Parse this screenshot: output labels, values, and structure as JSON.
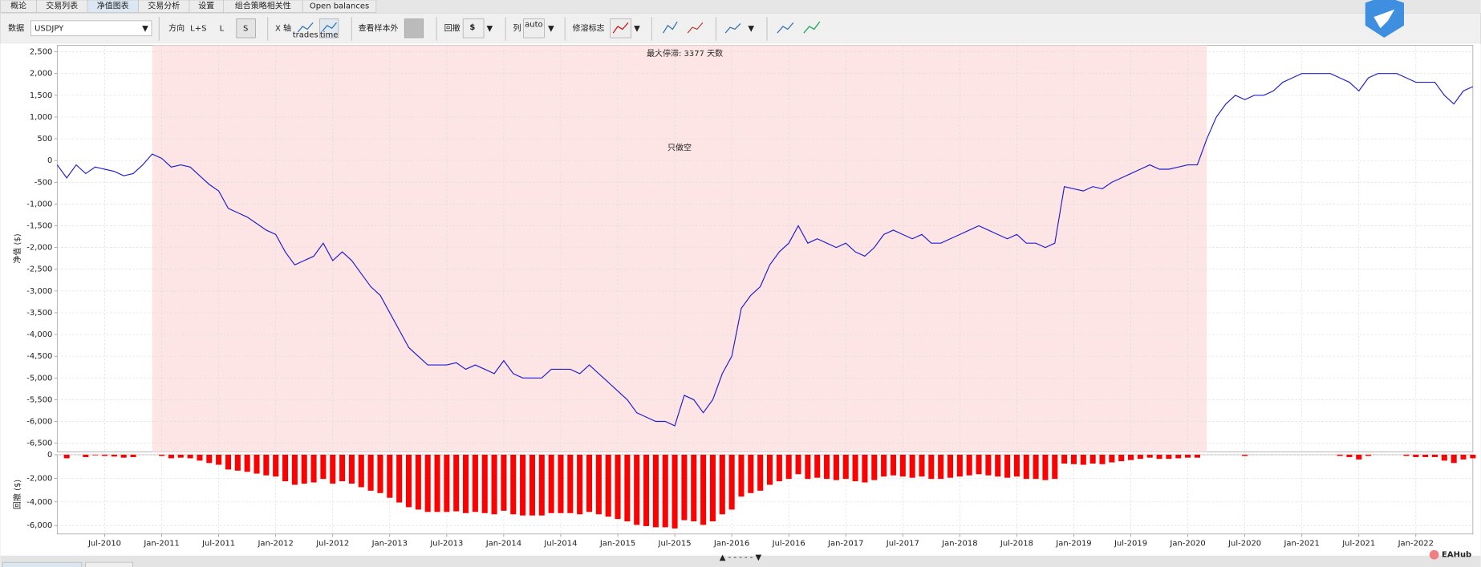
{
  "tabs": [
    "概论",
    "交易列表",
    "净值图表",
    "交易分析",
    "设置",
    "组合策略相关性",
    "Open balances"
  ],
  "toolbar": {
    "data_label": "数据",
    "symbol": "USDJPY",
    "direction_label": "方向",
    "direction_options": [
      "L+S",
      "L",
      "S"
    ],
    "x_axis_label": "X 轴",
    "x_axis_icons": [
      "trades",
      "time"
    ],
    "out_of_sample_label": "查看样本外",
    "drawdown_label": "回撤",
    "columns_label": "列",
    "columns_icon": "auto",
    "markers_label": "修溶标志"
  },
  "watermark": "EAHub",
  "chart_data": [
    {
      "type": "line",
      "ylabel": "净值 ($)",
      "annotation": "最大停滞: 3377 天数",
      "shaded_label": "只做空",
      "shaded_range": [
        "2010-12",
        "2020-03"
      ],
      "shaded_color": "#fde4e5",
      "xlim": [
        "2010-02",
        "2022-07"
      ],
      "ylim": [
        -6700,
        2650
      ],
      "grid": true,
      "yticks": [
        {
          "value": 2500,
          "label": "2,500"
        },
        {
          "value": 2000,
          "label": "2,000"
        },
        {
          "value": 1500,
          "label": "1,500"
        },
        {
          "value": 1000,
          "label": "1,000"
        },
        500,
        0,
        -500,
        {
          "value": -1000,
          "label": "-1,000"
        },
        {
          "value": -1500,
          "label": "-1,500"
        },
        {
          "value": -2000,
          "label": "-2,000"
        },
        {
          "value": -2500,
          "label": "-2,500"
        },
        {
          "value": -3000,
          "label": "-3,000"
        },
        {
          "value": -3500,
          "label": "-3,500"
        },
        {
          "value": -4000,
          "label": "-4,000"
        },
        {
          "value": -4500,
          "label": "-4,500"
        },
        {
          "value": -5000,
          "label": "-5,000"
        },
        {
          "value": -5500,
          "label": "-5,500"
        },
        {
          "value": -6000,
          "label": "-6,000"
        },
        {
          "value": -6500,
          "label": "-6,500"
        }
      ],
      "x": [
        "2010-02",
        "2010-03",
        "2010-04",
        "2010-05",
        "2010-06",
        "2010-07",
        "2010-08",
        "2010-09",
        "2010-10",
        "2010-11",
        "2010-12",
        "2011-01",
        "2011-02",
        "2011-03",
        "2011-04",
        "2011-05",
        "2011-06",
        "2011-07",
        "2011-08",
        "2011-09",
        "2011-10",
        "2011-11",
        "2011-12",
        "2012-01",
        "2012-02",
        "2012-03",
        "2012-04",
        "2012-05",
        "2012-06",
        "2012-07",
        "2012-08",
        "2012-09",
        "2012-10",
        "2012-11",
        "2012-12",
        "2013-01",
        "2013-02",
        "2013-03",
        "2013-04",
        "2013-05",
        "2013-06",
        "2013-07",
        "2013-08",
        "2013-09",
        "2013-10",
        "2013-11",
        "2013-12",
        "2014-01",
        "2014-02",
        "2014-03",
        "2014-04",
        "2014-05",
        "2014-06",
        "2014-07",
        "2014-08",
        "2014-09",
        "2014-10",
        "2014-11",
        "2014-12",
        "2015-01",
        "2015-02",
        "2015-03",
        "2015-04",
        "2015-05",
        "2015-06",
        "2015-07",
        "2015-08",
        "2015-09",
        "2015-10",
        "2015-11",
        "2015-12",
        "2016-01",
        "2016-02",
        "2016-03",
        "2016-04",
        "2016-05",
        "2016-06",
        "2016-07",
        "2016-08",
        "2016-09",
        "2016-10",
        "2016-11",
        "2016-12",
        "2017-01",
        "2017-02",
        "2017-03",
        "2017-04",
        "2017-05",
        "2017-06",
        "2017-07",
        "2017-08",
        "2017-09",
        "2017-10",
        "2017-11",
        "2017-12",
        "2018-01",
        "2018-02",
        "2018-03",
        "2018-04",
        "2018-05",
        "2018-06",
        "2018-07",
        "2018-08",
        "2018-09",
        "2018-10",
        "2018-11",
        "2018-12",
        "2019-01",
        "2019-02",
        "2019-03",
        "2019-04",
        "2019-05",
        "2019-06",
        "2019-07",
        "2019-08",
        "2019-09",
        "2019-10",
        "2019-11",
        "2019-12",
        "2020-01",
        "2020-02",
        "2020-03",
        "2020-04",
        "2020-05",
        "2020-06",
        "2020-07",
        "2020-08",
        "2020-09",
        "2020-10",
        "2020-11",
        "2020-12",
        "2021-01",
        "2021-02",
        "2021-03",
        "2021-04",
        "2021-05",
        "2021-06",
        "2021-07",
        "2021-08",
        "2021-09",
        "2021-10",
        "2021-11",
        "2021-12",
        "2022-01",
        "2022-02",
        "2022-03",
        "2022-04",
        "2022-05",
        "2022-06",
        "2022-07"
      ],
      "series": [
        {
          "name": "净值",
          "color": "#1f1fd1",
          "values": [
            -100,
            -400,
            -100,
            -300,
            -150,
            -200,
            -250,
            -350,
            -300,
            -100,
            150,
            50,
            -150,
            -100,
            -150,
            -350,
            -550,
            -700,
            -1100,
            -1200,
            -1300,
            -1450,
            -1600,
            -1700,
            -2100,
            -2400,
            -2300,
            -2200,
            -1900,
            -2300,
            -2100,
            -2300,
            -2600,
            -2900,
            -3100,
            -3500,
            -3900,
            -4300,
            -4500,
            -4700,
            -4700,
            -4700,
            -4650,
            -4800,
            -4700,
            -4800,
            -4900,
            -4600,
            -4900,
            -5000,
            -5000,
            -5000,
            -4800,
            -4800,
            -4800,
            -4900,
            -4700,
            -4900,
            -5100,
            -5300,
            -5500,
            -5800,
            -5900,
            -6000,
            -6000,
            -6100,
            -5400,
            -5500,
            -5800,
            -5500,
            -4900,
            -4500,
            -3400,
            -3100,
            -2900,
            -2400,
            -2100,
            -1900,
            -1500,
            -1900,
            -1800,
            -1900,
            -2000,
            -1900,
            -2100,
            -2200,
            -2000,
            -1700,
            -1600,
            -1700,
            -1800,
            -1700,
            -1900,
            -1900,
            -1800,
            -1700,
            -1600,
            -1500,
            -1600,
            -1700,
            -1800,
            -1700,
            -1900,
            -1900,
            -2000,
            -1900,
            -600,
            -650,
            -700,
            -600,
            -650,
            -500,
            -400,
            -300,
            -200,
            -100,
            -200,
            -200,
            -150,
            -100,
            -100,
            500,
            1000,
            1300,
            1500,
            1400,
            1500,
            1500,
            1600,
            1800,
            1900,
            2000,
            2000,
            2000,
            2000,
            1900,
            1800,
            1600,
            1900,
            2000,
            2000,
            2000,
            1900,
            1800,
            1800,
            1800,
            1500,
            1300,
            1600,
            1700
          ]
        }
      ]
    },
    {
      "type": "bar",
      "ylabel": "回撤 ($)",
      "xlim": [
        "2010-02",
        "2022-07"
      ],
      "ylim": [
        -6720,
        0
      ],
      "grid": true,
      "yticks": [
        0,
        {
          "value": -2000,
          "label": "-2,000"
        },
        {
          "value": -4000,
          "label": "-4,000"
        },
        {
          "value": -6000,
          "label": "-6,000"
        }
      ],
      "xticks": [
        {
          "value": "2010-07",
          "label": "Jul-2010"
        },
        {
          "value": "2011-01",
          "label": "Jan-2011"
        },
        {
          "value": "2011-07",
          "label": "Jul-2011"
        },
        {
          "value": "2012-01",
          "label": "Jan-2012"
        },
        {
          "value": "2012-07",
          "label": "Jul-2012"
        },
        {
          "value": "2013-01",
          "label": "Jan-2013"
        },
        {
          "value": "2013-07",
          "label": "Jul-2013"
        },
        {
          "value": "2014-01",
          "label": "Jan-2014"
        },
        {
          "value": "2014-07",
          "label": "Jul-2014"
        },
        {
          "value": "2015-01",
          "label": "Jan-2015"
        },
        {
          "value": "2015-07",
          "label": "Jul-2015"
        },
        {
          "value": "2016-01",
          "label": "Jan-2016"
        },
        {
          "value": "2016-07",
          "label": "Jul-2016"
        },
        {
          "value": "2017-01",
          "label": "Jan-2017"
        },
        {
          "value": "2017-07",
          "label": "Jul-2017"
        },
        {
          "value": "2018-01",
          "label": "Jan-2018"
        },
        {
          "value": "2018-07",
          "label": "Jul-2018"
        },
        {
          "value": "2019-01",
          "label": "Jan-2019"
        },
        {
          "value": "2019-07",
          "label": "Jul-2019"
        },
        {
          "value": "2020-01",
          "label": "Jan-2020"
        },
        {
          "value": "2020-07",
          "label": "Jul-2020"
        },
        {
          "value": "2021-01",
          "label": "Jan-2021"
        },
        {
          "value": "2021-07",
          "label": "Jul-2021"
        },
        {
          "value": "2022-01",
          "label": "Jan-2022"
        }
      ],
      "x": [
        "2010-02",
        "2010-03",
        "2010-04",
        "2010-05",
        "2010-06",
        "2010-07",
        "2010-08",
        "2010-09",
        "2010-10",
        "2010-11",
        "2010-12",
        "2011-01",
        "2011-02",
        "2011-03",
        "2011-04",
        "2011-05",
        "2011-06",
        "2011-07",
        "2011-08",
        "2011-09",
        "2011-10",
        "2011-11",
        "2011-12",
        "2012-01",
        "2012-02",
        "2012-03",
        "2012-04",
        "2012-05",
        "2012-06",
        "2012-07",
        "2012-08",
        "2012-09",
        "2012-10",
        "2012-11",
        "2012-12",
        "2013-01",
        "2013-02",
        "2013-03",
        "2013-04",
        "2013-05",
        "2013-06",
        "2013-07",
        "2013-08",
        "2013-09",
        "2013-10",
        "2013-11",
        "2013-12",
        "2014-01",
        "2014-02",
        "2014-03",
        "2014-04",
        "2014-05",
        "2014-06",
        "2014-07",
        "2014-08",
        "2014-09",
        "2014-10",
        "2014-11",
        "2014-12",
        "2015-01",
        "2015-02",
        "2015-03",
        "2015-04",
        "2015-05",
        "2015-06",
        "2015-07",
        "2015-08",
        "2015-09",
        "2015-10",
        "2015-11",
        "2015-12",
        "2016-01",
        "2016-02",
        "2016-03",
        "2016-04",
        "2016-05",
        "2016-06",
        "2016-07",
        "2016-08",
        "2016-09",
        "2016-10",
        "2016-11",
        "2016-12",
        "2017-01",
        "2017-02",
        "2017-03",
        "2017-04",
        "2017-05",
        "2017-06",
        "2017-07",
        "2017-08",
        "2017-09",
        "2017-10",
        "2017-11",
        "2017-12",
        "2018-01",
        "2018-02",
        "2018-03",
        "2018-04",
        "2018-05",
        "2018-06",
        "2018-07",
        "2018-08",
        "2018-09",
        "2018-10",
        "2018-11",
        "2018-12",
        "2019-01",
        "2019-02",
        "2019-03",
        "2019-04",
        "2019-05",
        "2019-06",
        "2019-07",
        "2019-08",
        "2019-09",
        "2019-10",
        "2019-11",
        "2019-12",
        "2020-01",
        "2020-02",
        "2020-03",
        "2020-04",
        "2020-05",
        "2020-06",
        "2020-07",
        "2020-08",
        "2020-09",
        "2020-10",
        "2020-11",
        "2020-12",
        "2021-01",
        "2021-02",
        "2021-03",
        "2021-04",
        "2021-05",
        "2021-06",
        "2021-07",
        "2021-08",
        "2021-09",
        "2021-10",
        "2021-11",
        "2021-12",
        "2022-01",
        "2022-02",
        "2022-03",
        "2022-04",
        "2022-05",
        "2022-06",
        "2022-07"
      ],
      "color": "#ff0000",
      "values": [
        0,
        -300,
        0,
        -200,
        -50,
        -100,
        -150,
        -250,
        -200,
        0,
        0,
        -100,
        -300,
        -250,
        -300,
        -500,
        -700,
        -850,
        -1250,
        -1350,
        -1450,
        -1600,
        -1750,
        -1850,
        -2250,
        -2550,
        -2450,
        -2350,
        -2050,
        -2450,
        -2250,
        -2450,
        -2750,
        -3050,
        -3250,
        -3650,
        -4050,
        -4450,
        -4650,
        -4850,
        -4850,
        -4850,
        -4800,
        -4950,
        -4850,
        -4950,
        -5050,
        -4750,
        -5050,
        -5150,
        -5150,
        -5150,
        -4950,
        -4950,
        -4950,
        -5050,
        -4850,
        -5050,
        -5250,
        -5450,
        -5650,
        -5950,
        -6050,
        -6150,
        -6150,
        -6250,
        -5550,
        -5650,
        -5950,
        -5650,
        -5050,
        -4650,
        -3550,
        -3250,
        -3050,
        -2550,
        -2250,
        -2050,
        -1650,
        -2050,
        -1950,
        -2050,
        -2150,
        -2050,
        -2250,
        -2350,
        -2150,
        -1850,
        -1750,
        -1850,
        -1950,
        -1850,
        -2050,
        -2050,
        -1950,
        -1850,
        -1750,
        -1650,
        -1750,
        -1850,
        -1950,
        -1850,
        -2050,
        -2050,
        -2150,
        -2050,
        -750,
        -800,
        -850,
        -750,
        -800,
        -650,
        -550,
        -450,
        -350,
        -250,
        -350,
        -350,
        -300,
        -250,
        -250,
        0,
        0,
        0,
        0,
        -100,
        0,
        0,
        0,
        0,
        0,
        0,
        0,
        0,
        0,
        -100,
        -200,
        -400,
        -100,
        0,
        0,
        0,
        -100,
        -200,
        -200,
        -200,
        -500,
        -700,
        -400,
        -300
      ]
    }
  ]
}
